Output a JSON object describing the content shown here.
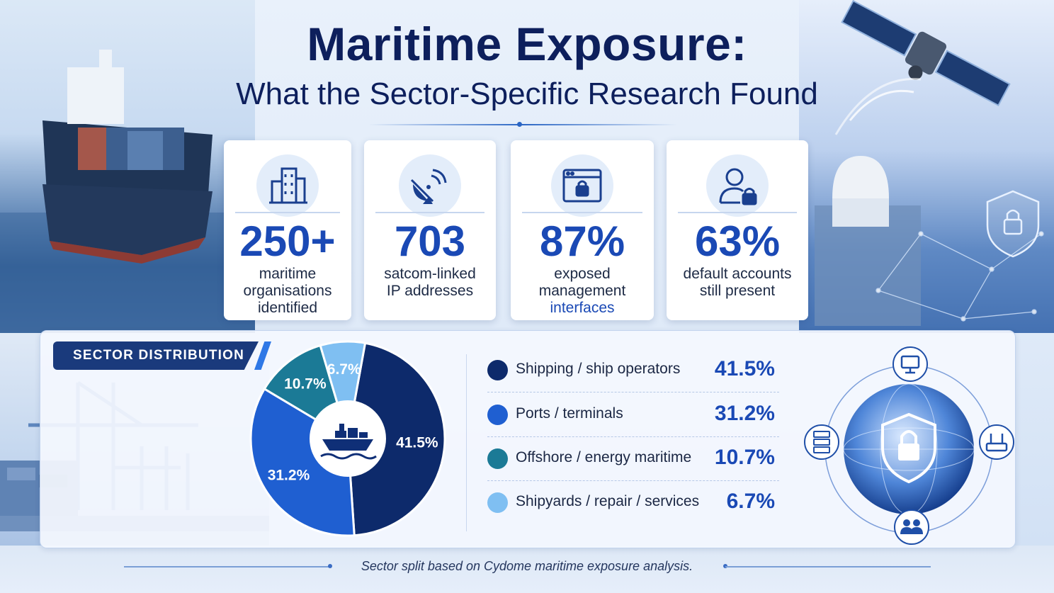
{
  "header": {
    "title": "Maritime Exposure:",
    "subtitle": "What the Sector-Specific Research Found"
  },
  "stats": [
    {
      "value": "250+",
      "label_lines": [
        "maritime",
        "organisations",
        "identified"
      ],
      "icon": "office-building-icon"
    },
    {
      "value": "703",
      "label_lines": [
        "satcom-linked",
        "IP addresses"
      ],
      "icon": "satellite-dish-icon"
    },
    {
      "value": "87%",
      "label_lines": [
        "exposed",
        "management",
        "interfaces"
      ],
      "icon": "browser-lock-icon"
    },
    {
      "value": "63%",
      "label_lines": [
        "default accounts",
        "still present"
      ],
      "icon": "user-lock-icon"
    }
  ],
  "section_label": "SECTOR DISTRIBUTION",
  "chart_data": {
    "type": "pie",
    "style": "donut",
    "categories": [
      "Shipping / ship operators",
      "Ports / terminals",
      "Offshore / energy maritime",
      "Shipyards / repair / services"
    ],
    "values": [
      41.5,
      31.2,
      10.7,
      6.7
    ],
    "value_labels": [
      "41.5%",
      "31.2%",
      "10.7%",
      "6.7%"
    ],
    "colors": [
      "#0d2a6b",
      "#1f5fd1",
      "#1b7a96",
      "#7fbff2"
    ],
    "center_icon": "cargo-ship-icon",
    "legend_position": "right"
  },
  "footnote": "Sector split based on Cydome maritime exposure analysis."
}
